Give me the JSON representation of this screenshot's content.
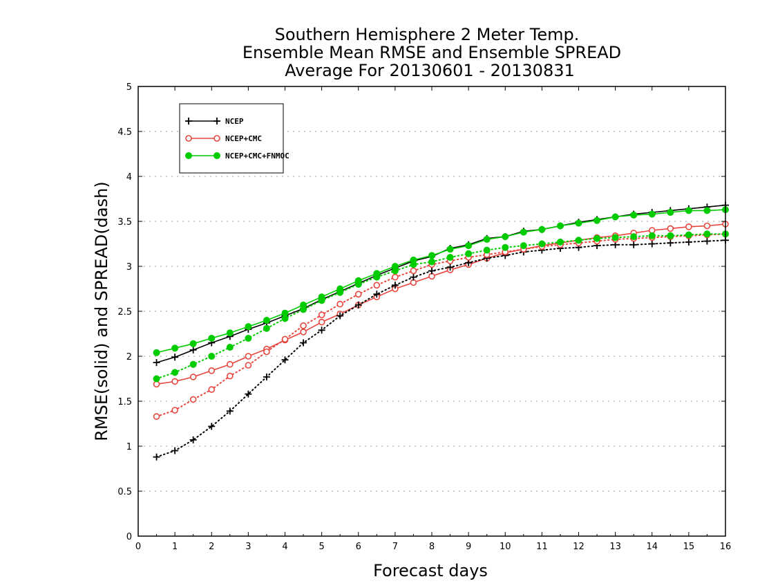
{
  "chart_data": {
    "type": "line",
    "title_lines": [
      "Southern Hemisphere 2 Meter Temp.",
      "Ensemble Mean RMSE and Ensemble SPREAD",
      "Average For 20130601 - 20130831"
    ],
    "xlabel": "Forecast days",
    "ylabel": "RMSE(solid) and SPREAD(dash)",
    "xlim": [
      0,
      16
    ],
    "ylim": [
      0,
      5
    ],
    "x_ticks": [
      0,
      1,
      2,
      3,
      4,
      5,
      6,
      7,
      8,
      9,
      10,
      11,
      12,
      13,
      14,
      15,
      16
    ],
    "y_ticks": [
      0,
      0.5,
      1,
      1.5,
      2,
      2.5,
      3,
      3.5,
      4,
      4.5,
      5
    ],
    "y_tick_labels": [
      "0",
      "0.5",
      "1",
      "1.5",
      "2",
      "2.5",
      "3",
      "3.5",
      "4",
      "4.5",
      "5"
    ],
    "grid": "horizontal-dotted",
    "legend_position": "top-left",
    "x": [
      0.5,
      1,
      1.5,
      2,
      2.5,
      3,
      3.5,
      4,
      4.5,
      5,
      5.5,
      6,
      6.5,
      7,
      7.5,
      8,
      8.5,
      9,
      9.5,
      10,
      10.5,
      11,
      11.5,
      12,
      12.5,
      13,
      13.5,
      14,
      14.5,
      15,
      15.5,
      16
    ],
    "series": [
      {
        "name": "NCEP",
        "kind": "RMSE",
        "color": "#000000",
        "marker": "plus",
        "style": "solid",
        "values": [
          1.93,
          1.99,
          2.07,
          2.15,
          2.22,
          2.3,
          2.37,
          2.45,
          2.53,
          2.63,
          2.72,
          2.81,
          2.9,
          2.98,
          3.06,
          3.11,
          3.2,
          3.24,
          3.31,
          3.33,
          3.39,
          3.41,
          3.45,
          3.49,
          3.52,
          3.55,
          3.58,
          3.6,
          3.62,
          3.64,
          3.66,
          3.68
        ]
      },
      {
        "name": "NCEP+CMC",
        "kind": "RMSE",
        "color": "#e8453c",
        "marker": "open-circle",
        "style": "solid",
        "values": [
          1.69,
          1.72,
          1.77,
          1.84,
          1.91,
          2.0,
          2.08,
          2.18,
          2.27,
          2.38,
          2.47,
          2.57,
          2.66,
          2.75,
          2.82,
          2.89,
          2.96,
          3.02,
          3.09,
          3.15,
          3.19,
          3.23,
          3.26,
          3.29,
          3.32,
          3.34,
          3.37,
          3.4,
          3.42,
          3.44,
          3.45,
          3.47
        ]
      },
      {
        "name": "NCEP+CMC+FNMOC",
        "kind": "RMSE",
        "color": "#00cc00",
        "marker": "filled-circle",
        "style": "solid",
        "values": [
          2.04,
          2.09,
          2.14,
          2.2,
          2.26,
          2.33,
          2.4,
          2.48,
          2.57,
          2.66,
          2.75,
          2.84,
          2.92,
          3.0,
          3.07,
          3.12,
          3.19,
          3.23,
          3.3,
          3.33,
          3.38,
          3.41,
          3.45,
          3.48,
          3.51,
          3.55,
          3.57,
          3.58,
          3.6,
          3.62,
          3.62,
          3.63
        ]
      },
      {
        "name": "NCEP",
        "kind": "SPREAD",
        "color": "#000000",
        "marker": "plus",
        "style": "dotted",
        "values": [
          0.88,
          0.95,
          1.07,
          1.22,
          1.39,
          1.58,
          1.77,
          1.96,
          2.15,
          2.29,
          2.45,
          2.57,
          2.69,
          2.79,
          2.88,
          2.95,
          2.99,
          3.04,
          3.09,
          3.12,
          3.16,
          3.18,
          3.2,
          3.21,
          3.23,
          3.24,
          3.24,
          3.25,
          3.26,
          3.27,
          3.28,
          3.29
        ]
      },
      {
        "name": "NCEP+CMC",
        "kind": "SPREAD",
        "color": "#e8453c",
        "marker": "open-circle",
        "style": "dotted",
        "values": [
          1.33,
          1.4,
          1.52,
          1.63,
          1.78,
          1.9,
          2.05,
          2.19,
          2.34,
          2.46,
          2.58,
          2.69,
          2.79,
          2.88,
          2.95,
          3.02,
          3.06,
          3.1,
          3.13,
          3.16,
          3.19,
          3.22,
          3.24,
          3.26,
          3.28,
          3.3,
          3.31,
          3.32,
          3.33,
          3.34,
          3.35,
          3.36
        ]
      },
      {
        "name": "NCEP+CMC+FNMOC",
        "kind": "SPREAD",
        "color": "#00cc00",
        "marker": "filled-circle",
        "style": "dotted",
        "values": [
          1.75,
          1.82,
          1.91,
          2.0,
          2.1,
          2.2,
          2.31,
          2.42,
          2.52,
          2.62,
          2.71,
          2.8,
          2.88,
          2.95,
          3.02,
          3.05,
          3.1,
          3.14,
          3.18,
          3.21,
          3.23,
          3.25,
          3.27,
          3.29,
          3.31,
          3.32,
          3.33,
          3.34,
          3.34,
          3.35,
          3.36,
          3.36
        ]
      }
    ],
    "legend": [
      {
        "label": "NCEP",
        "color": "#000000",
        "marker": "plus"
      },
      {
        "label": "NCEP+CMC",
        "color": "#e8453c",
        "marker": "open-circle"
      },
      {
        "label": "NCEP+CMC+FNMOC",
        "color": "#00cc00",
        "marker": "filled-circle"
      }
    ]
  }
}
